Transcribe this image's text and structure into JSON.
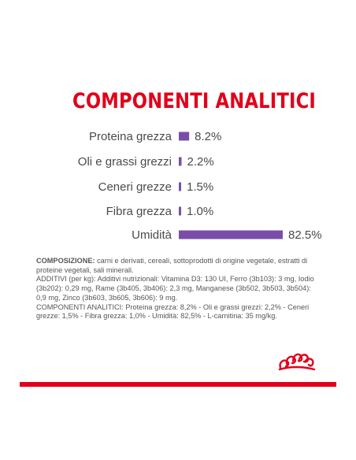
{
  "colors": {
    "brand_red": "#e2001a",
    "bar_purple": "#7a4ea8",
    "text_gray": "#555555",
    "text_dark": "#4a4a4a"
  },
  "chart_data": {
    "type": "bar",
    "orientation": "horizontal",
    "title": "COMPONENTI ANALITICI",
    "categories": [
      "Proteina grezza",
      "Oli e grassi grezzi",
      "Ceneri grezze",
      "Fibra grezza",
      "Umidità"
    ],
    "values": [
      8.2,
      2.2,
      1.5,
      1.0,
      82.5
    ],
    "value_labels": [
      "8.2%",
      "2.2%",
      "1.5%",
      "1.0%",
      "82.5%"
    ],
    "unit": "%",
    "xlabel": "",
    "ylabel": "",
    "xlim": [
      0,
      82.5
    ],
    "grid": false,
    "legend": "none"
  },
  "composition": {
    "label": "COMPOSIZIONE:",
    "line1": " carni e derivati, cereali, sottoprodotti di origine vegetale, estratti di proteine vegetali, sali minerali.",
    "line2": "ADDITIVI (per kg): Additivi nutrizionali: Vitamina D3: 130 UI, Ferro (3b103): 3 mg, Iodio (3b202): 0,29 mg, Rame (3b405, 3b406): 2,3 mg, Manganese (3b502, 3b503, 3b504): 0,9 mg, Zinco (3b603, 3b605, 3b606): 9 mg.",
    "line3": "COMPONENTI ANALITICI: Proteina grezza: 8,2% - Oli e grassi grezzi: 2,2% - Ceneri grezze: 1,5% - Fibra grezza: 1,0% - Umidità: 82,5% - L-carnitina: 35 mg/kg."
  },
  "logo": {
    "icon": "royal-canin-crown-icon"
  }
}
